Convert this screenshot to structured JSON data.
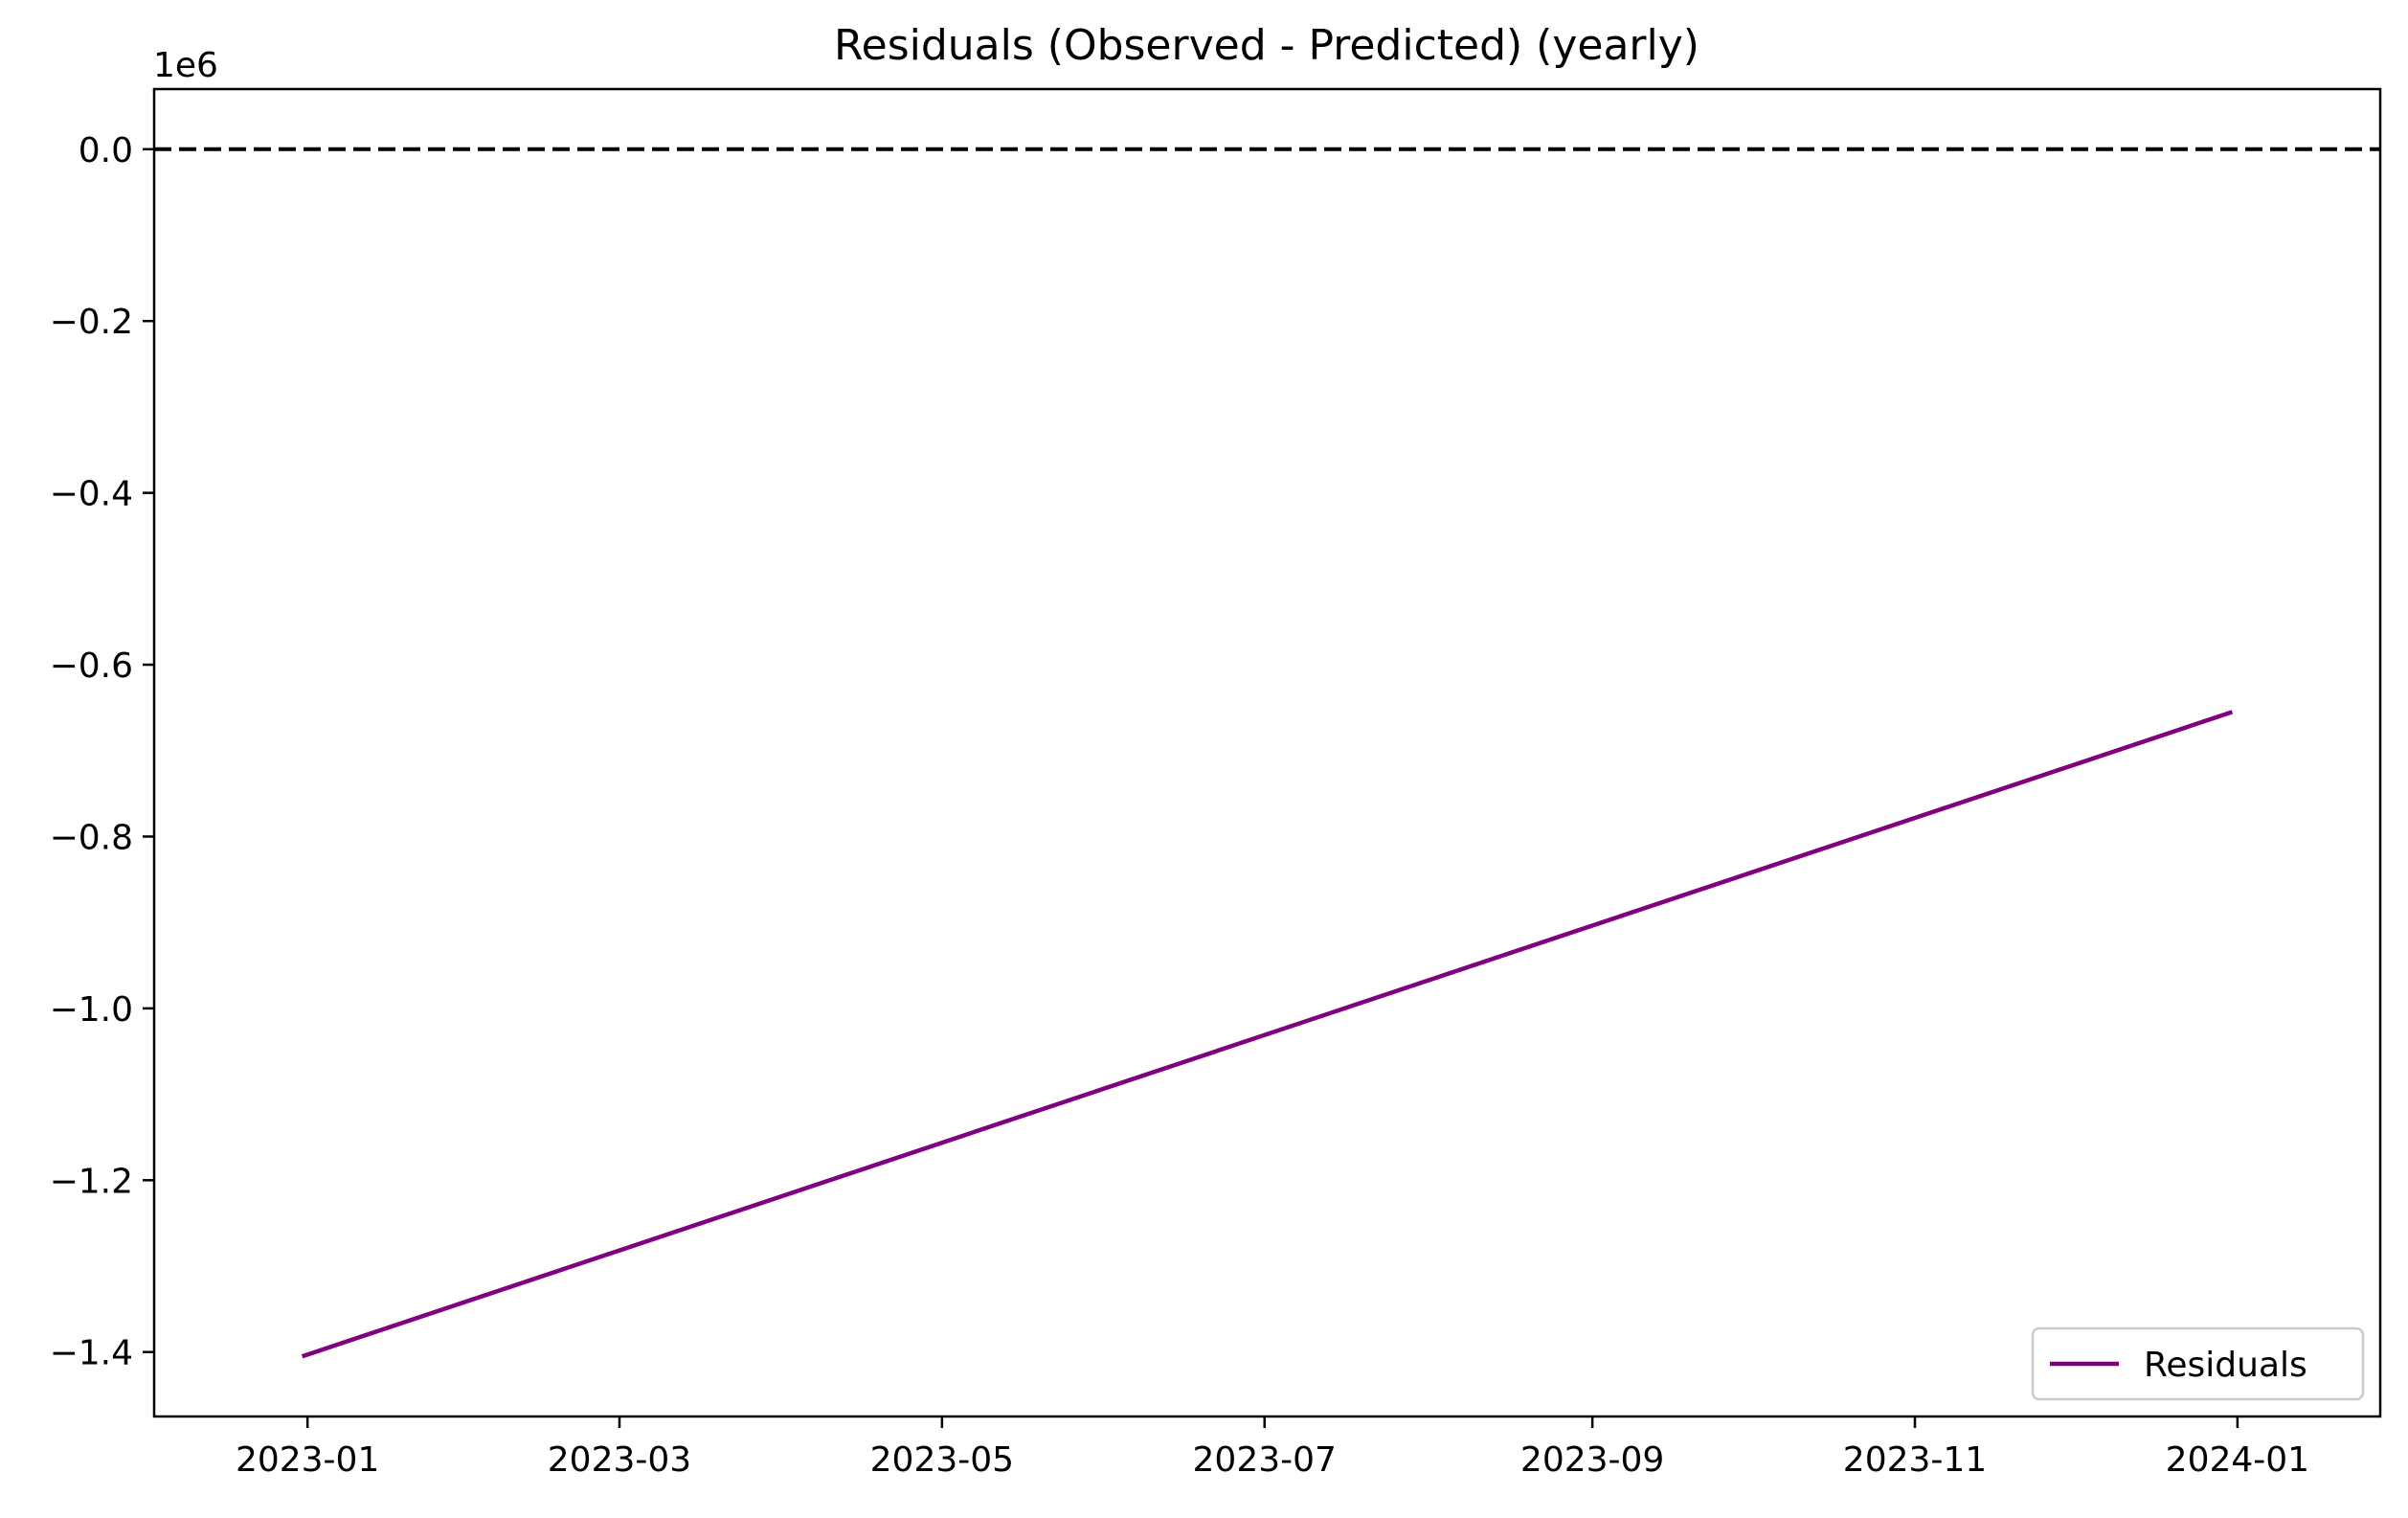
{
  "chart_data": {
    "type": "line",
    "title": "Residuals (Observed - Predicted) (yearly)",
    "xlabel": "",
    "ylabel": "",
    "y_scale_label": "1e6",
    "x_is_date": true,
    "xlim": [
      "2022-12-03",
      "2024-01-28"
    ],
    "ylim": [
      -1475000,
      70000
    ],
    "x_ticks": [
      "2023-01-01",
      "2023-03-01",
      "2023-05-01",
      "2023-07-01",
      "2023-09-01",
      "2023-11-01",
      "2024-01-01"
    ],
    "x_tick_labels": [
      "2023-01",
      "2023-03",
      "2023-05",
      "2023-07",
      "2023-09",
      "2023-11",
      "2024-01"
    ],
    "y_ticks": [
      0,
      -200000,
      -400000,
      -600000,
      -800000,
      -1000000,
      -1200000,
      -1400000
    ],
    "y_tick_labels": [
      "0.0",
      "−0.2",
      "−0.4",
      "−0.6",
      "−0.8",
      "−1.0",
      "−1.2",
      "−1.4"
    ],
    "series": [
      {
        "name": "Residuals",
        "color": "#800080",
        "x": [
          "2022-12-31",
          "2023-12-31"
        ],
        "y": [
          -1405000,
          -655000
        ]
      }
    ],
    "reference_line": {
      "y": 0,
      "color": "#000000",
      "style": "dashed"
    },
    "legend": {
      "position": "lower-right",
      "entries": [
        "Residuals"
      ]
    },
    "grid": false
  }
}
